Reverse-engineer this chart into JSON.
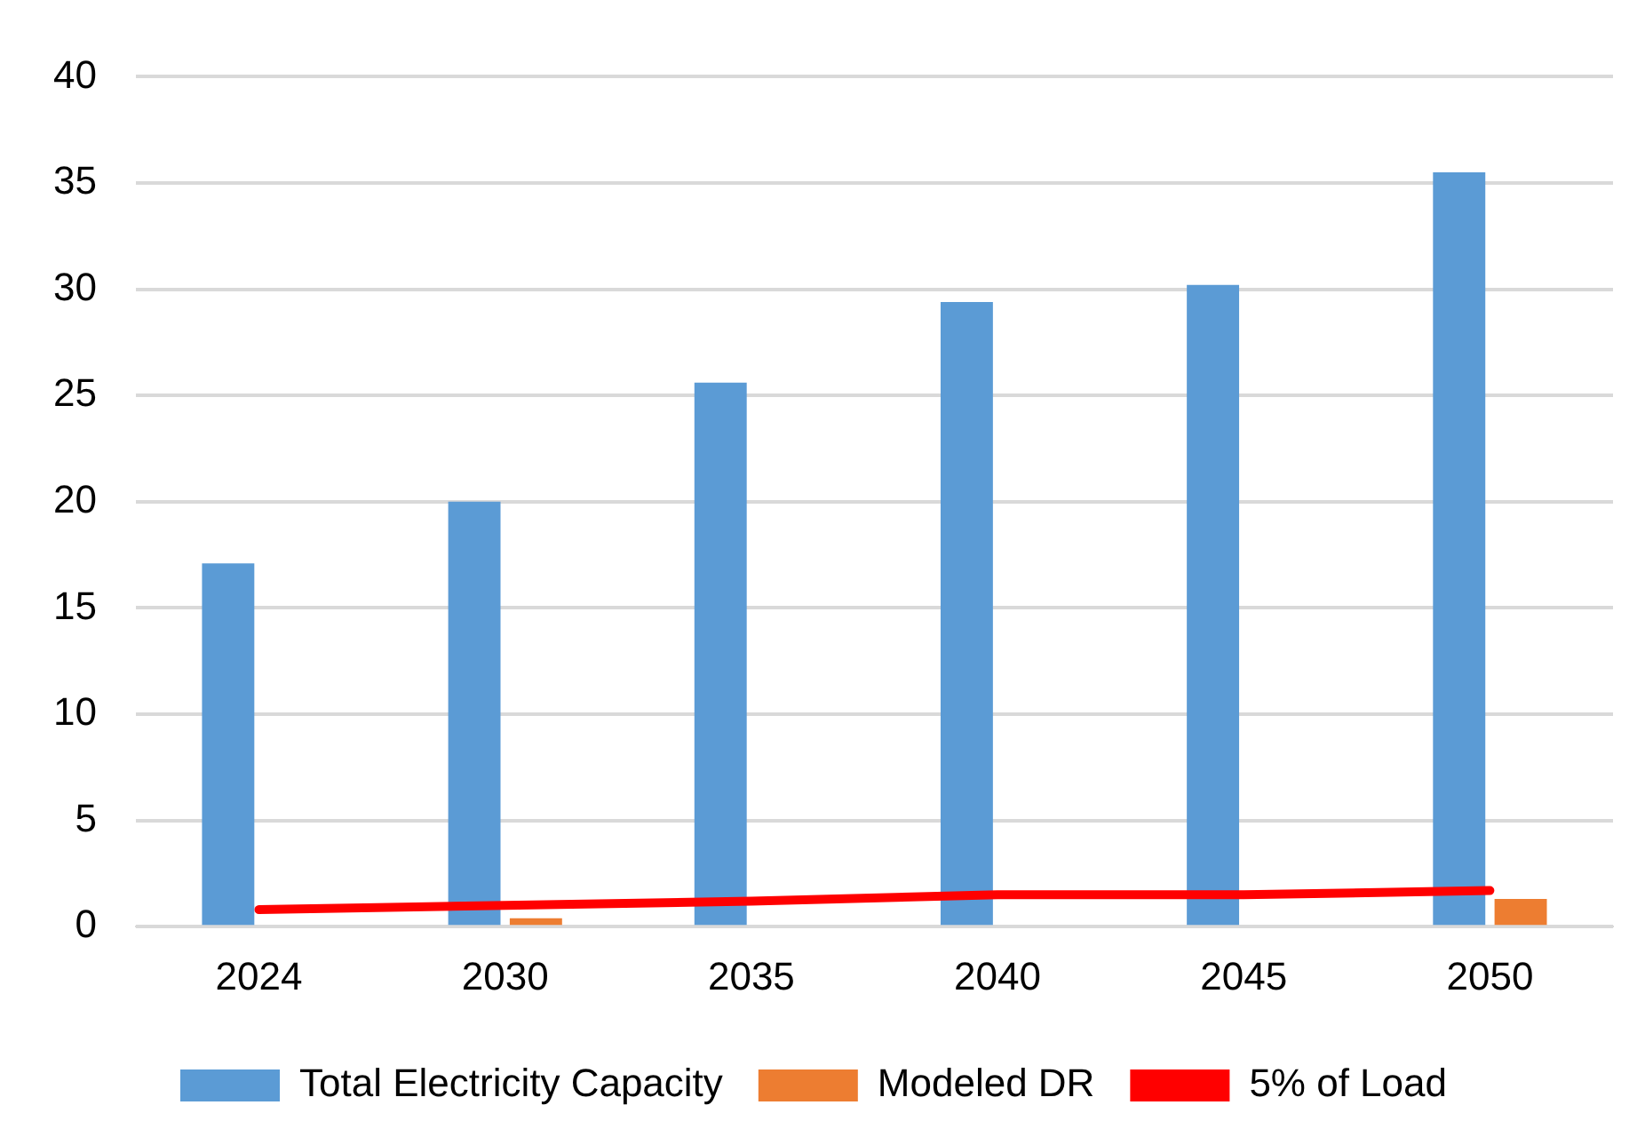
{
  "chart_data": {
    "type": "bar",
    "categories": [
      "2024",
      "2030",
      "2035",
      "2040",
      "2045",
      "2050"
    ],
    "series": [
      {
        "name": "Total Electricity Capacity",
        "color": "#5b9bd5",
        "values": [
          17.1,
          20.0,
          25.6,
          29.4,
          30.2,
          35.5
        ]
      },
      {
        "name": "Modeled DR",
        "color": "#ed7d31",
        "values": [
          0,
          0.4,
          0,
          0,
          0,
          1.3
        ]
      },
      {
        "name": "5% of Load",
        "type": "line",
        "color": "#ff0000",
        "values": [
          0.8,
          1.0,
          1.2,
          1.5,
          1.5,
          1.7
        ]
      }
    ],
    "ylim": [
      0,
      40
    ],
    "yticks": [
      0,
      5,
      10,
      15,
      20,
      25,
      30,
      35,
      40
    ],
    "grid": "y",
    "legend": "bottom",
    "marker": "none"
  }
}
